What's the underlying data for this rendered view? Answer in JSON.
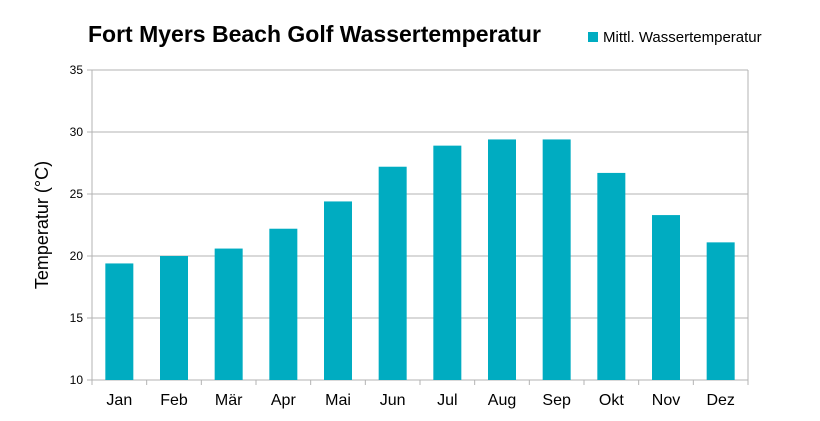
{
  "chart_data": {
    "type": "bar",
    "title": "Fort Myers Beach Golf Wassertemperatur",
    "xlabel": "",
    "ylabel": "Temperatur (°C)",
    "ylim": [
      10,
      35
    ],
    "yticks": [
      10,
      15,
      20,
      25,
      30,
      35
    ],
    "grid": true,
    "legend_position": "top-right",
    "categories": [
      "Jan",
      "Feb",
      "Mär",
      "Apr",
      "Mai",
      "Jun",
      "Jul",
      "Aug",
      "Sep",
      "Okt",
      "Nov",
      "Dez"
    ],
    "series": [
      {
        "name": "Mittl. Wassertemperatur",
        "color": "#00acc1",
        "values": [
          19.4,
          20.0,
          20.6,
          22.2,
          24.4,
          27.2,
          28.9,
          29.4,
          29.4,
          26.7,
          23.3,
          21.1
        ]
      }
    ]
  }
}
